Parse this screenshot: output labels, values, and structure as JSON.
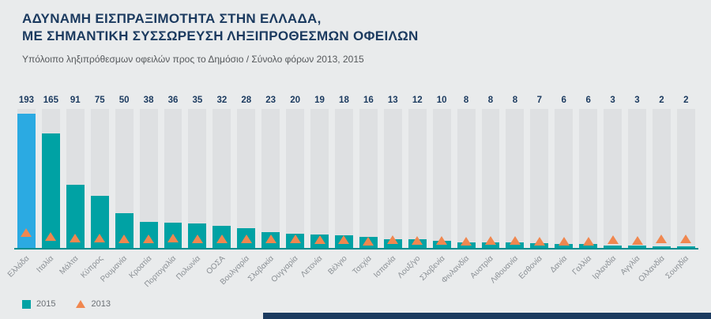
{
  "header": {
    "title_line1": "ΑΔΥΝΑΜΗ ΕΙΣΠΡΑΞΙΜΟΤΗΤΑ ΣΤΗΝ ΕΛΛΑΔΑ,",
    "title_line2": "ΜΕ ΣΗΜΑΝΤΙΚΗ ΣΥΣΣΩΡΕΥΣΗ ΛΗΞΙΠΡΟΘΕΣΜΩΝ ΟΦΕΙΛΩΝ",
    "subtitle": "Υπόλοιπο ληξιπρόθεσμων οφειλών προς το Δημόσιο / Σύνολο φόρων 2013, 2015"
  },
  "colors": {
    "background": "#E9EBEC",
    "title": "#1B3A5F",
    "bar_2015": "#00A2A4",
    "bar_highlight_greece": "#2BAAE2",
    "marker_2013": "#F0874F",
    "column_background": "#DEE0E2",
    "axis_line": "#008E90",
    "footer": "#1B3A5F"
  },
  "legend": {
    "items": [
      {
        "label": "2015",
        "marker": "square",
        "color": "#00A2A4"
      },
      {
        "label": "2013",
        "marker": "triangle",
        "color": "#F0874F"
      }
    ]
  },
  "chart_data": {
    "type": "bar",
    "title": "ΑΔΥΝΑΜΗ ΕΙΣΠΡΑΞΙΜΟΤΗΤΑ ΣΤΗΝ ΕΛΛΑΔΑ, ΜΕ ΣΗΜΑΝΤΙΚΗ ΣΥΣΣΩΡΕΥΣΗ ΛΗΞΙΠΡΟΘΕΣΜΩΝ ΟΦΕΙΛΩΝ",
    "subtitle": "Υπόλοιπο ληξιπρόθεσμων οφειλών προς το Δημόσιο / Σύνολο φόρων 2013, 2015",
    "categories": [
      "Ελλάδα",
      "Ιταλία",
      "Μάλτα",
      "Κύπρος",
      "Ρουμανία",
      "Κροατία",
      "Πορτογαλία",
      "Πολωνία",
      "ΟΟΣΑ",
      "Βουλγαρία",
      "Σλοβακία",
      "Ουγγαρία",
      "Λετονία",
      "Βέλγιο",
      "Τσεχία",
      "Ισπανία",
      "Λουξ/γο",
      "Σλοβενία",
      "Φινλανδία",
      "Αυστρία",
      "Λιθουανία",
      "Εσθονία",
      "Δανία",
      "Γαλλία",
      "Ιρλανδία",
      "Αγγλία",
      "Ολλανδία",
      "Σουηδία"
    ],
    "series": [
      {
        "name": "2015",
        "type": "bar",
        "values": [
          193,
          165,
          91,
          75,
          50,
          38,
          36,
          35,
          32,
          28,
          23,
          20,
          19,
          18,
          16,
          13,
          12,
          10,
          8,
          8,
          8,
          7,
          6,
          6,
          3,
          3,
          2,
          2
        ]
      },
      {
        "name": "2013",
        "type": "triangle_marker",
        "values_estimated": [
          22,
          16,
          14,
          14,
          13,
          13,
          14,
          13,
          12,
          13,
          12,
          12,
          11,
          11,
          9,
          11,
          10,
          10,
          9,
          10,
          10,
          9,
          9,
          9,
          11,
          10,
          12,
          13
        ],
        "note": "2013 shown only as unlabeled triangle markers; values estimated from marker positions"
      }
    ],
    "ylim": [
      0,
      200
    ],
    "highlight_category": "Ελλάδα",
    "value_labels": "2015 values shown in a row above the columns",
    "legend_position": "bottom-left",
    "grid": false
  }
}
